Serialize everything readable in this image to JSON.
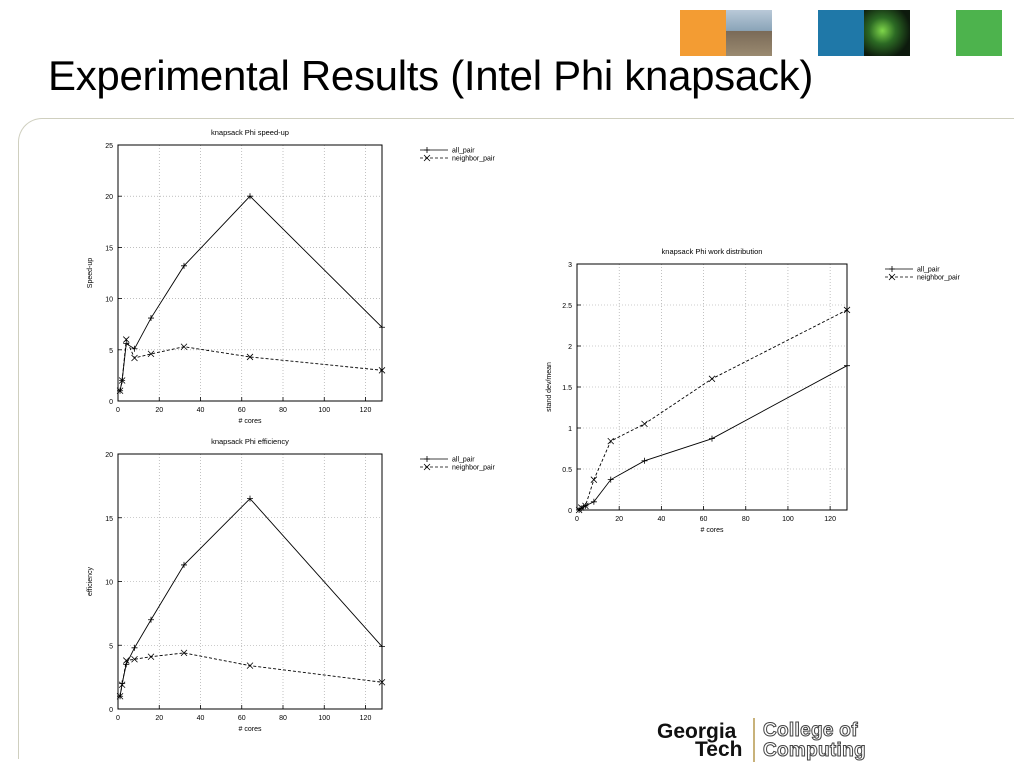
{
  "slide": {
    "title": "Experimental Results (Intel Phi knapsack)"
  },
  "header": {
    "tiles": [
      {
        "name": "orange-tile",
        "color": "#f39c33"
      },
      {
        "name": "campus-photo-tile",
        "color": "#8aa4b8"
      },
      {
        "name": "blue-tile",
        "color": "#1f78a8"
      },
      {
        "name": "network-image-tile",
        "color": "#1c3a1c"
      },
      {
        "name": "green-tile",
        "color": "#4db34d"
      }
    ]
  },
  "footer": {
    "logo_line1": "Georgia",
    "logo_line2": "Tech",
    "college_line1": "College of",
    "college_line2": "Computing"
  },
  "chart_data": [
    {
      "type": "line",
      "title": "knapsack Phi speed-up",
      "xlabel": "# cores",
      "ylabel": "Speed-up",
      "xlim": [
        0,
        128
      ],
      "ylim": [
        0,
        25
      ],
      "xticks": [
        0,
        20,
        40,
        60,
        80,
        100,
        120
      ],
      "yticks": [
        0,
        5,
        10,
        15,
        20,
        25
      ],
      "grid": true,
      "legend": "top-right",
      "series": [
        {
          "name": "all_pair",
          "style": "solid",
          "marker": "+",
          "x": [
            1,
            2,
            4,
            8,
            16,
            32,
            64,
            128
          ],
          "y": [
            1,
            2,
            5.6,
            5.1,
            8.1,
            13.2,
            20.0,
            7.2
          ]
        },
        {
          "name": "neighbor_pair",
          "style": "dashed",
          "marker": "x",
          "x": [
            1,
            2,
            4,
            8,
            16,
            32,
            64,
            128
          ],
          "y": [
            1,
            2,
            6.0,
            4.2,
            4.6,
            5.3,
            4.3,
            3.0
          ]
        }
      ]
    },
    {
      "type": "line",
      "title": "knapsack Phi efficiency",
      "xlabel": "# cores",
      "ylabel": "efficiency",
      "xlim": [
        0,
        128
      ],
      "ylim": [
        0,
        20
      ],
      "xticks": [
        0,
        20,
        40,
        60,
        80,
        100,
        120
      ],
      "yticks": [
        0,
        5,
        10,
        15,
        20
      ],
      "grid": true,
      "legend": "top-right",
      "series": [
        {
          "name": "all_pair",
          "style": "solid",
          "marker": "+",
          "x": [
            1,
            2,
            4,
            8,
            16,
            32,
            64,
            128
          ],
          "y": [
            1,
            2,
            3.5,
            4.8,
            7.0,
            11.3,
            16.5,
            4.9
          ]
        },
        {
          "name": "neighbor_pair",
          "style": "dashed",
          "marker": "x",
          "x": [
            1,
            2,
            4,
            8,
            16,
            32,
            64,
            128
          ],
          "y": [
            1,
            1.9,
            3.8,
            3.9,
            4.1,
            4.4,
            3.4,
            2.1
          ]
        }
      ]
    },
    {
      "type": "line",
      "title": "knapsack Phi work distribution",
      "xlabel": "# cores",
      "ylabel": "stand dev/mean",
      "xlim": [
        0,
        128
      ],
      "ylim": [
        0,
        3
      ],
      "xticks": [
        0,
        20,
        40,
        60,
        80,
        100,
        120
      ],
      "yticks": [
        0,
        0.5,
        1,
        1.5,
        2,
        2.5,
        3
      ],
      "grid": true,
      "legend": "top-right",
      "series": [
        {
          "name": "all_pair",
          "style": "solid",
          "marker": "+",
          "x": [
            1,
            2,
            4,
            8,
            16,
            32,
            64,
            128
          ],
          "y": [
            0,
            0.02,
            0.05,
            0.1,
            0.37,
            0.6,
            0.87,
            1.76
          ]
        },
        {
          "name": "neighbor_pair",
          "style": "dashed",
          "marker": "x",
          "x": [
            1,
            2,
            4,
            8,
            16,
            32,
            64,
            128
          ],
          "y": [
            0,
            0.03,
            0.05,
            0.37,
            0.84,
            1.05,
            1.6,
            2.44
          ]
        }
      ]
    }
  ]
}
